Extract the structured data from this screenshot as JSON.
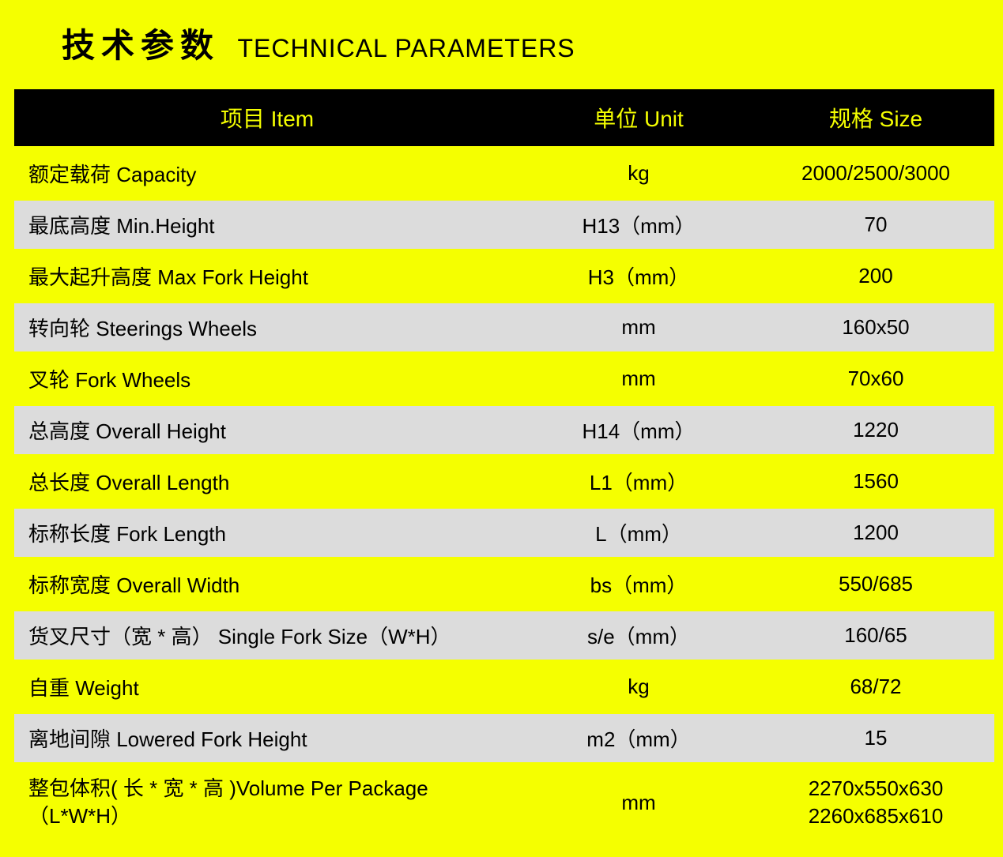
{
  "title_cn": "技术参数",
  "title_en": "TECHNICAL PARAMETERS",
  "colors": {
    "page_bg": "#f5ff00",
    "header_bg": "#000000",
    "header_text": "#f5ff00",
    "row_alt_bg": "#dcdcdc",
    "row_main_bg": "#f5ff00",
    "text": "#000000"
  },
  "typography": {
    "title_cn_fontsize_pt": 32,
    "title_en_fontsize_pt": 24,
    "header_fontsize_pt": 21,
    "cell_fontsize_pt": 20,
    "font_family": "Microsoft YaHei / PingFang SC / Arial"
  },
  "table": {
    "type": "table",
    "column_widths_ratio": [
      0.52,
      0.24,
      0.24
    ],
    "columns": [
      {
        "label": "项目 Item",
        "align": "center"
      },
      {
        "label": "单位 Unit",
        "align": "center"
      },
      {
        "label": "规格 Size",
        "align": "center"
      }
    ],
    "rows": [
      {
        "item": "额定载荷 Capacity",
        "unit": "kg",
        "size": "2000/2500/3000",
        "bg": "yellow"
      },
      {
        "item": "最底高度  Min.Height",
        "unit": "H13（mm）",
        "size": "70",
        "bg": "gray"
      },
      {
        "item": "最大起升高度  Max Fork Height",
        "unit": "H3（mm）",
        "size": "200",
        "bg": "yellow"
      },
      {
        "item": "转向轮  Steerings Wheels",
        "unit": "mm",
        "size": "160x50",
        "bg": "gray"
      },
      {
        "item": "叉轮  Fork  Wheels",
        "unit": "mm",
        "size": "70x60",
        "bg": "yellow"
      },
      {
        "item": "总高度  Overall Height",
        "unit": "H14（mm）",
        "size": "1220",
        "bg": "gray"
      },
      {
        "item": "总长度  Overall Length",
        "unit": "L1（mm）",
        "size": "1560",
        "bg": "yellow"
      },
      {
        "item": "标称长度  Fork Length",
        "unit": "L（mm）",
        "size": "1200",
        "bg": "gray"
      },
      {
        "item": "标称宽度  Overall Width",
        "unit": "bs（mm）",
        "size": "550/685",
        "bg": "yellow"
      },
      {
        "item": "货叉尺寸（宽 * 高）  Single Fork Size（W*H）",
        "unit": "s/e（mm）",
        "size": "160/65",
        "bg": "gray"
      },
      {
        "item": "自重  Weight",
        "unit": "kg",
        "size": "68/72",
        "bg": "yellow"
      },
      {
        "item": "离地间隙  Lowered Fork Height",
        "unit": "m2（mm）",
        "size": "15",
        "bg": "gray"
      },
      {
        "item": "整包体积( 长 * 宽 * 高 )Volume Per Package（L*W*H）",
        "unit": "mm",
        "size_lines": [
          "2270x550x630",
          "2260x685x610"
        ],
        "bg": "yellow"
      }
    ]
  }
}
